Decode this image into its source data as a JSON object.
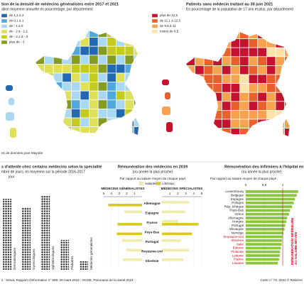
{
  "maps": [
    {
      "title": "tion de la densité de médecins généralistes entre 2017 et 2021",
      "subtitle": "ation moyenne annuelle en pourcentage, par département",
      "legend": [
        {
          "label": "de 1,1 à 2",
          "color": "#2368b0"
        },
        {
          "label": "de 0,1 à 1",
          "color": "#4fa9de"
        },
        {
          "label": "de - 1 à 0",
          "color": "#a8d8f2"
        },
        {
          "label": "de - 2 à - 1,1",
          "color": "#dfe05a"
        },
        {
          "label": "de - 2,1 à - 3",
          "color": "#c3cc1e"
        },
        {
          "label": "plus de - 3",
          "color": "#859c22"
        }
      ],
      "note": "es de données pour Mayotte"
    },
    {
      "title": "Patients sans médecin traitant au 30 juin 2021",
      "subtitle": "En pourcentage de la population de 17 ans et plus, par département",
      "legend": [
        {
          "label": "plus de 12,5",
          "color": "#c4122f"
        },
        {
          "label": "de 11,1 à 12,5",
          "color": "#e8612c"
        },
        {
          "label": "de 9,5 à 11",
          "color": "#f6a24e"
        },
        {
          "label": "moins de 9,5",
          "color": "#fde3a8"
        }
      ]
    }
  ],
  "chart_data": [
    {
      "type": "bar",
      "title": "s d'attente chez certains médecins selon la spécialité",
      "subtitle": "mbre de jours, en moyenne sur la période 2016-2017",
      "unit": "jour",
      "categories": [
        "Dermatologues",
        "Gynécologues",
        "Ophtalmologues",
        "Pédiatres",
        "Médecins généralistes"
      ],
      "values": [
        50,
        44,
        52,
        21,
        6
      ],
      "color": "#1e1e1e"
    },
    {
      "type": "butterfly",
      "title": "Rémunération des médecins en 2019",
      "subtitle": "(ou année la plus proche)",
      "note": "Par rapport au salaire moyen de chaque pays",
      "categories": [
        "Allemagne",
        "Espagne",
        "France",
        "Pays-Bas",
        "Portugal",
        "Royaume-Uni",
        "Slovénie"
      ],
      "panels": [
        {
          "title": "MÉDECINS GÉNÉRALISTES",
          "xlim": [
            0,
            5
          ],
          "xticks": [
            5,
            4,
            3,
            2,
            1
          ],
          "series": [
            {
              "name": "Salariés",
              "color": "#f1ebab",
              "values": [
                null,
                2.3,
                null,
                null,
                2.6,
                2.0,
                2.5
              ]
            },
            {
              "name": "Libéraux",
              "color": "#d9c91c",
              "values": [
                4.4,
                null,
                3.2,
                3.3,
                null,
                null,
                null
              ]
            }
          ]
        },
        {
          "title": "MÉDECINS SPÉCIALISTES",
          "xlim": [
            0,
            5
          ],
          "xticks": [
            1,
            2,
            3,
            4,
            5
          ],
          "series": [
            {
              "name": "Salariés",
              "color": "#f1ebab",
              "values": [
                3.4,
                2.9,
                2.0,
                null,
                2.4,
                3.4,
                2.7
              ]
            },
            {
              "name": "Libéraux",
              "color": "#d9c91c",
              "values": [
                null,
                null,
                4.6,
                3.8,
                null,
                null,
                null
              ]
            }
          ]
        }
      ]
    },
    {
      "type": "hbar",
      "title": "Rémunération des infirmiers à l'hôpital en 20",
      "subtitle": "(ou année la plus proche)",
      "note": "Par rapport au salaire moyen de chaque pays",
      "categories": [
        "Luxembourg",
        "Belgique",
        "Espagne",
        "Pologne",
        "Rép. tchèque",
        "Pays-Bas",
        "Grèce",
        "Allemagne",
        "Hongrie",
        "Portugal",
        "Slovaquie",
        "Norvège",
        "Royaume-Uni",
        "Slovénie",
        "Italie",
        "Estonie",
        "Finlande",
        "Lettonie",
        "France",
        "Lituanie"
      ],
      "values": [
        1.42,
        1.38,
        1.33,
        1.3,
        1.25,
        1.2,
        1.17,
        1.12,
        1.1,
        1.07,
        1.05,
        1.02,
        0.99,
        0.98,
        0.97,
        0.95,
        0.93,
        0.92,
        0.9,
        0.87
      ],
      "color": "#8cc63f",
      "reference": 1,
      "highlight_color": "#d0021b",
      "annotation": [
        "RÉMUNÉRATION INFÉRIEURE",
        "AU SALAIRE MOYEN"
      ],
      "xlim": [
        0,
        1.5
      ],
      "xticks": [
        0,
        {
          "value": 0.5,
          "label": "0,5"
        },
        1
      ]
    }
  ],
  "source": "s : Sénat, Rapport d'information n° 589, 29 mars 2022 ; OCDE, Panorama de la santé 2021",
  "credit": "Carte n° 72, 2022 © Rebière/"
}
